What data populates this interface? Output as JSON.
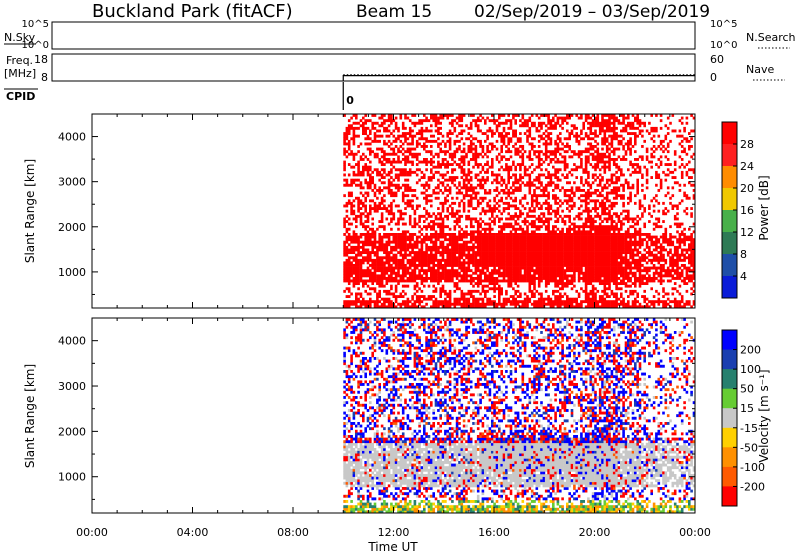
{
  "header": {
    "station": "Buckland Park (fitACF)",
    "beam": "Beam 15",
    "date_range": "02/Sep/2019 – 03/Sep/2019"
  },
  "noise_panel": {
    "left_label": "N.Sky",
    "right_label": "N.Search",
    "left_ticks": [
      "10^5",
      "10^0"
    ],
    "right_ticks": [
      "10^5",
      "10^0"
    ]
  },
  "freq_panel": {
    "left_label_1": "Freq.",
    "left_label_2": "[MHz]",
    "right_label": "Nave",
    "left_ticks": [
      18,
      8
    ],
    "right_ticks": [
      60,
      0
    ],
    "freq_level": 10,
    "nave_level": 14
  },
  "cpid": {
    "label": "CPID",
    "value": "0",
    "start_hour": 10
  },
  "colors": {
    "power": [
      "#0a1cd8",
      "#1f4fa8",
      "#2e7a55",
      "#48b04a",
      "#f0c800",
      "#ff8c00",
      "#ff2020",
      "#ff0000"
    ],
    "velocity": [
      "#0000ff",
      "#1a3fb0",
      "#26806e",
      "#66cc33",
      "#c8c8c8",
      "#ffd000",
      "#ff9000",
      "#ff5a00",
      "#ff0000"
    ]
  },
  "chart_data": [
    {
      "type": "heatmap",
      "name": "power-panel",
      "ylabel": "Slant Range [km]",
      "yticks": [
        1000,
        2000,
        3000,
        4000
      ],
      "ylim": [
        200,
        4500
      ],
      "xlim": [
        0,
        24
      ],
      "data_start_hour": 10,
      "colorbar": {
        "label": "Power [dB]",
        "ticks": [
          "28",
          "24",
          "20",
          "16",
          "12",
          "8",
          "4"
        ]
      }
    },
    {
      "type": "heatmap",
      "name": "velocity-panel",
      "ylabel": "Slant Range [km]",
      "xlabel": "Time UT",
      "yticks": [
        1000,
        2000,
        3000,
        4000
      ],
      "ylim": [
        200,
        4500
      ],
      "xlim": [
        0,
        24
      ],
      "xticks": [
        "00:00",
        "04:00",
        "08:00",
        "12:00",
        "16:00",
        "20:00",
        "00:00"
      ],
      "data_start_hour": 10,
      "colorbar": {
        "label": "Velocity [m s⁻¹]",
        "ticks": [
          "200",
          "100",
          "50",
          "15",
          "-15",
          "-50",
          "-100",
          "-200"
        ]
      }
    }
  ]
}
